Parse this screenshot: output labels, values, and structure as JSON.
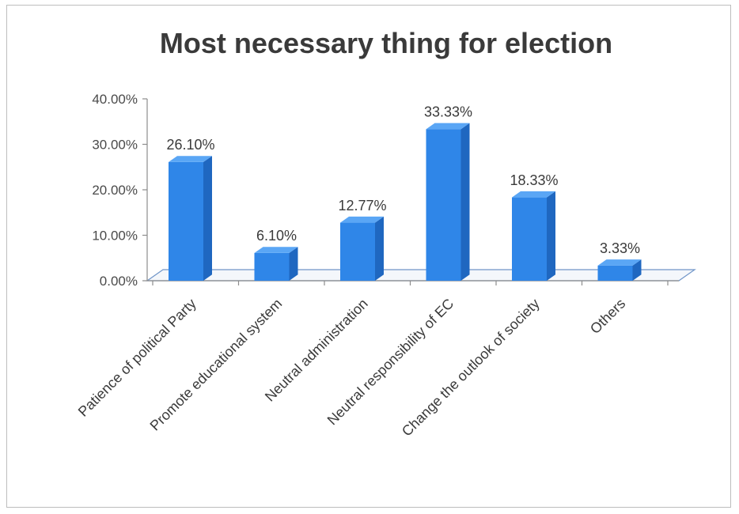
{
  "chart_data": {
    "type": "bar",
    "title": "Most necessary thing for election",
    "xlabel": "",
    "ylabel": "",
    "categories": [
      "Patience of political Party",
      "Promote educational system",
      "Neutral administration",
      "Neutral responsibility of EC",
      "Change the outlook of society",
      "Others"
    ],
    "values": [
      26.1,
      6.1,
      12.77,
      33.33,
      18.33,
      3.33
    ],
    "value_labels": [
      "26.10%",
      "6.10%",
      "12.77%",
      "33.33%",
      "18.33%",
      "3.33%"
    ],
    "yticks": [
      "0.00%",
      "10.00%",
      "20.00%",
      "30.00%",
      "40.00%"
    ],
    "ylim": [
      0,
      40
    ],
    "grid": false,
    "legend": "none",
    "style": "3d-column",
    "colors": {
      "bar_front": "#2f86e8",
      "bar_side": "#1f67c0",
      "bar_top": "#5aa6f5",
      "floor": "#6f95c8",
      "axis": "#8c8c8c"
    }
  }
}
